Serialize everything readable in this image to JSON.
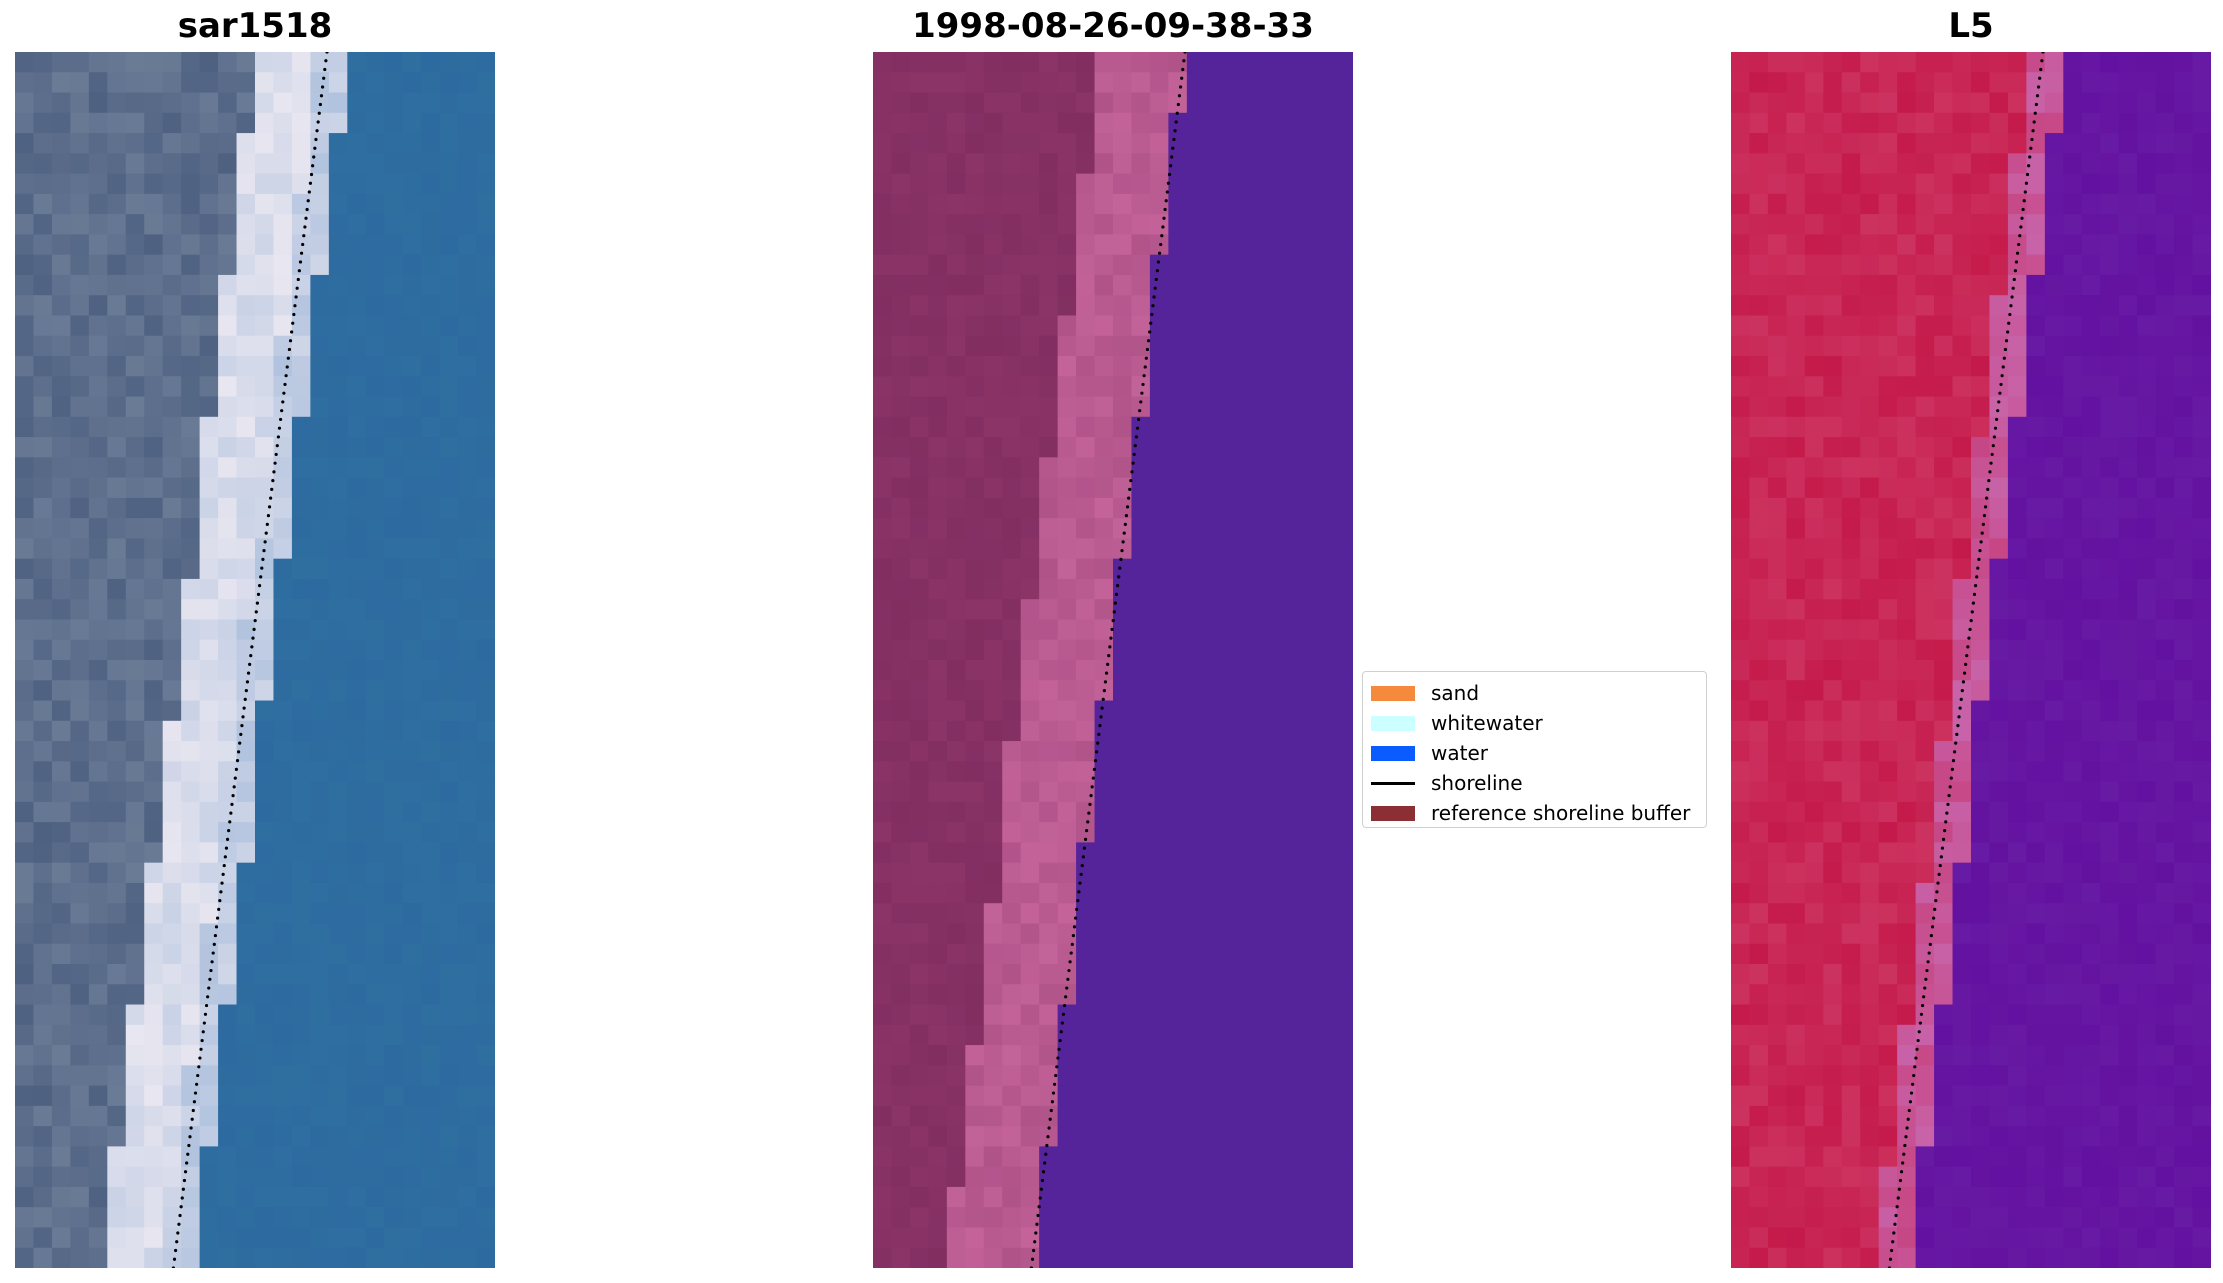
{
  "panels": [
    {
      "title": "sar1518"
    },
    {
      "title": "1998-08-26-09-38-33"
    },
    {
      "title": "L5"
    }
  ],
  "legend": {
    "items": [
      {
        "label": "sand",
        "color": "#f58a3c"
      },
      {
        "label": "whitewater",
        "color": "#ccffff"
      },
      {
        "label": "water",
        "color": "#0b5cff"
      },
      {
        "label": "shoreline",
        "color": "#000000"
      },
      {
        "label": "reference shoreline buffer",
        "color": "#8b2f35"
      }
    ]
  },
  "colors": {
    "rgb_land": "#6a7b96",
    "rgb_white": "#e8e6f0",
    "rgb_water": "#2d6aa0",
    "class_land": "#8b3468",
    "class_beach": "#c3639a",
    "class_water": "#55239a",
    "l5_land": "#c41a4b",
    "l5_water": "#6311a0"
  }
}
